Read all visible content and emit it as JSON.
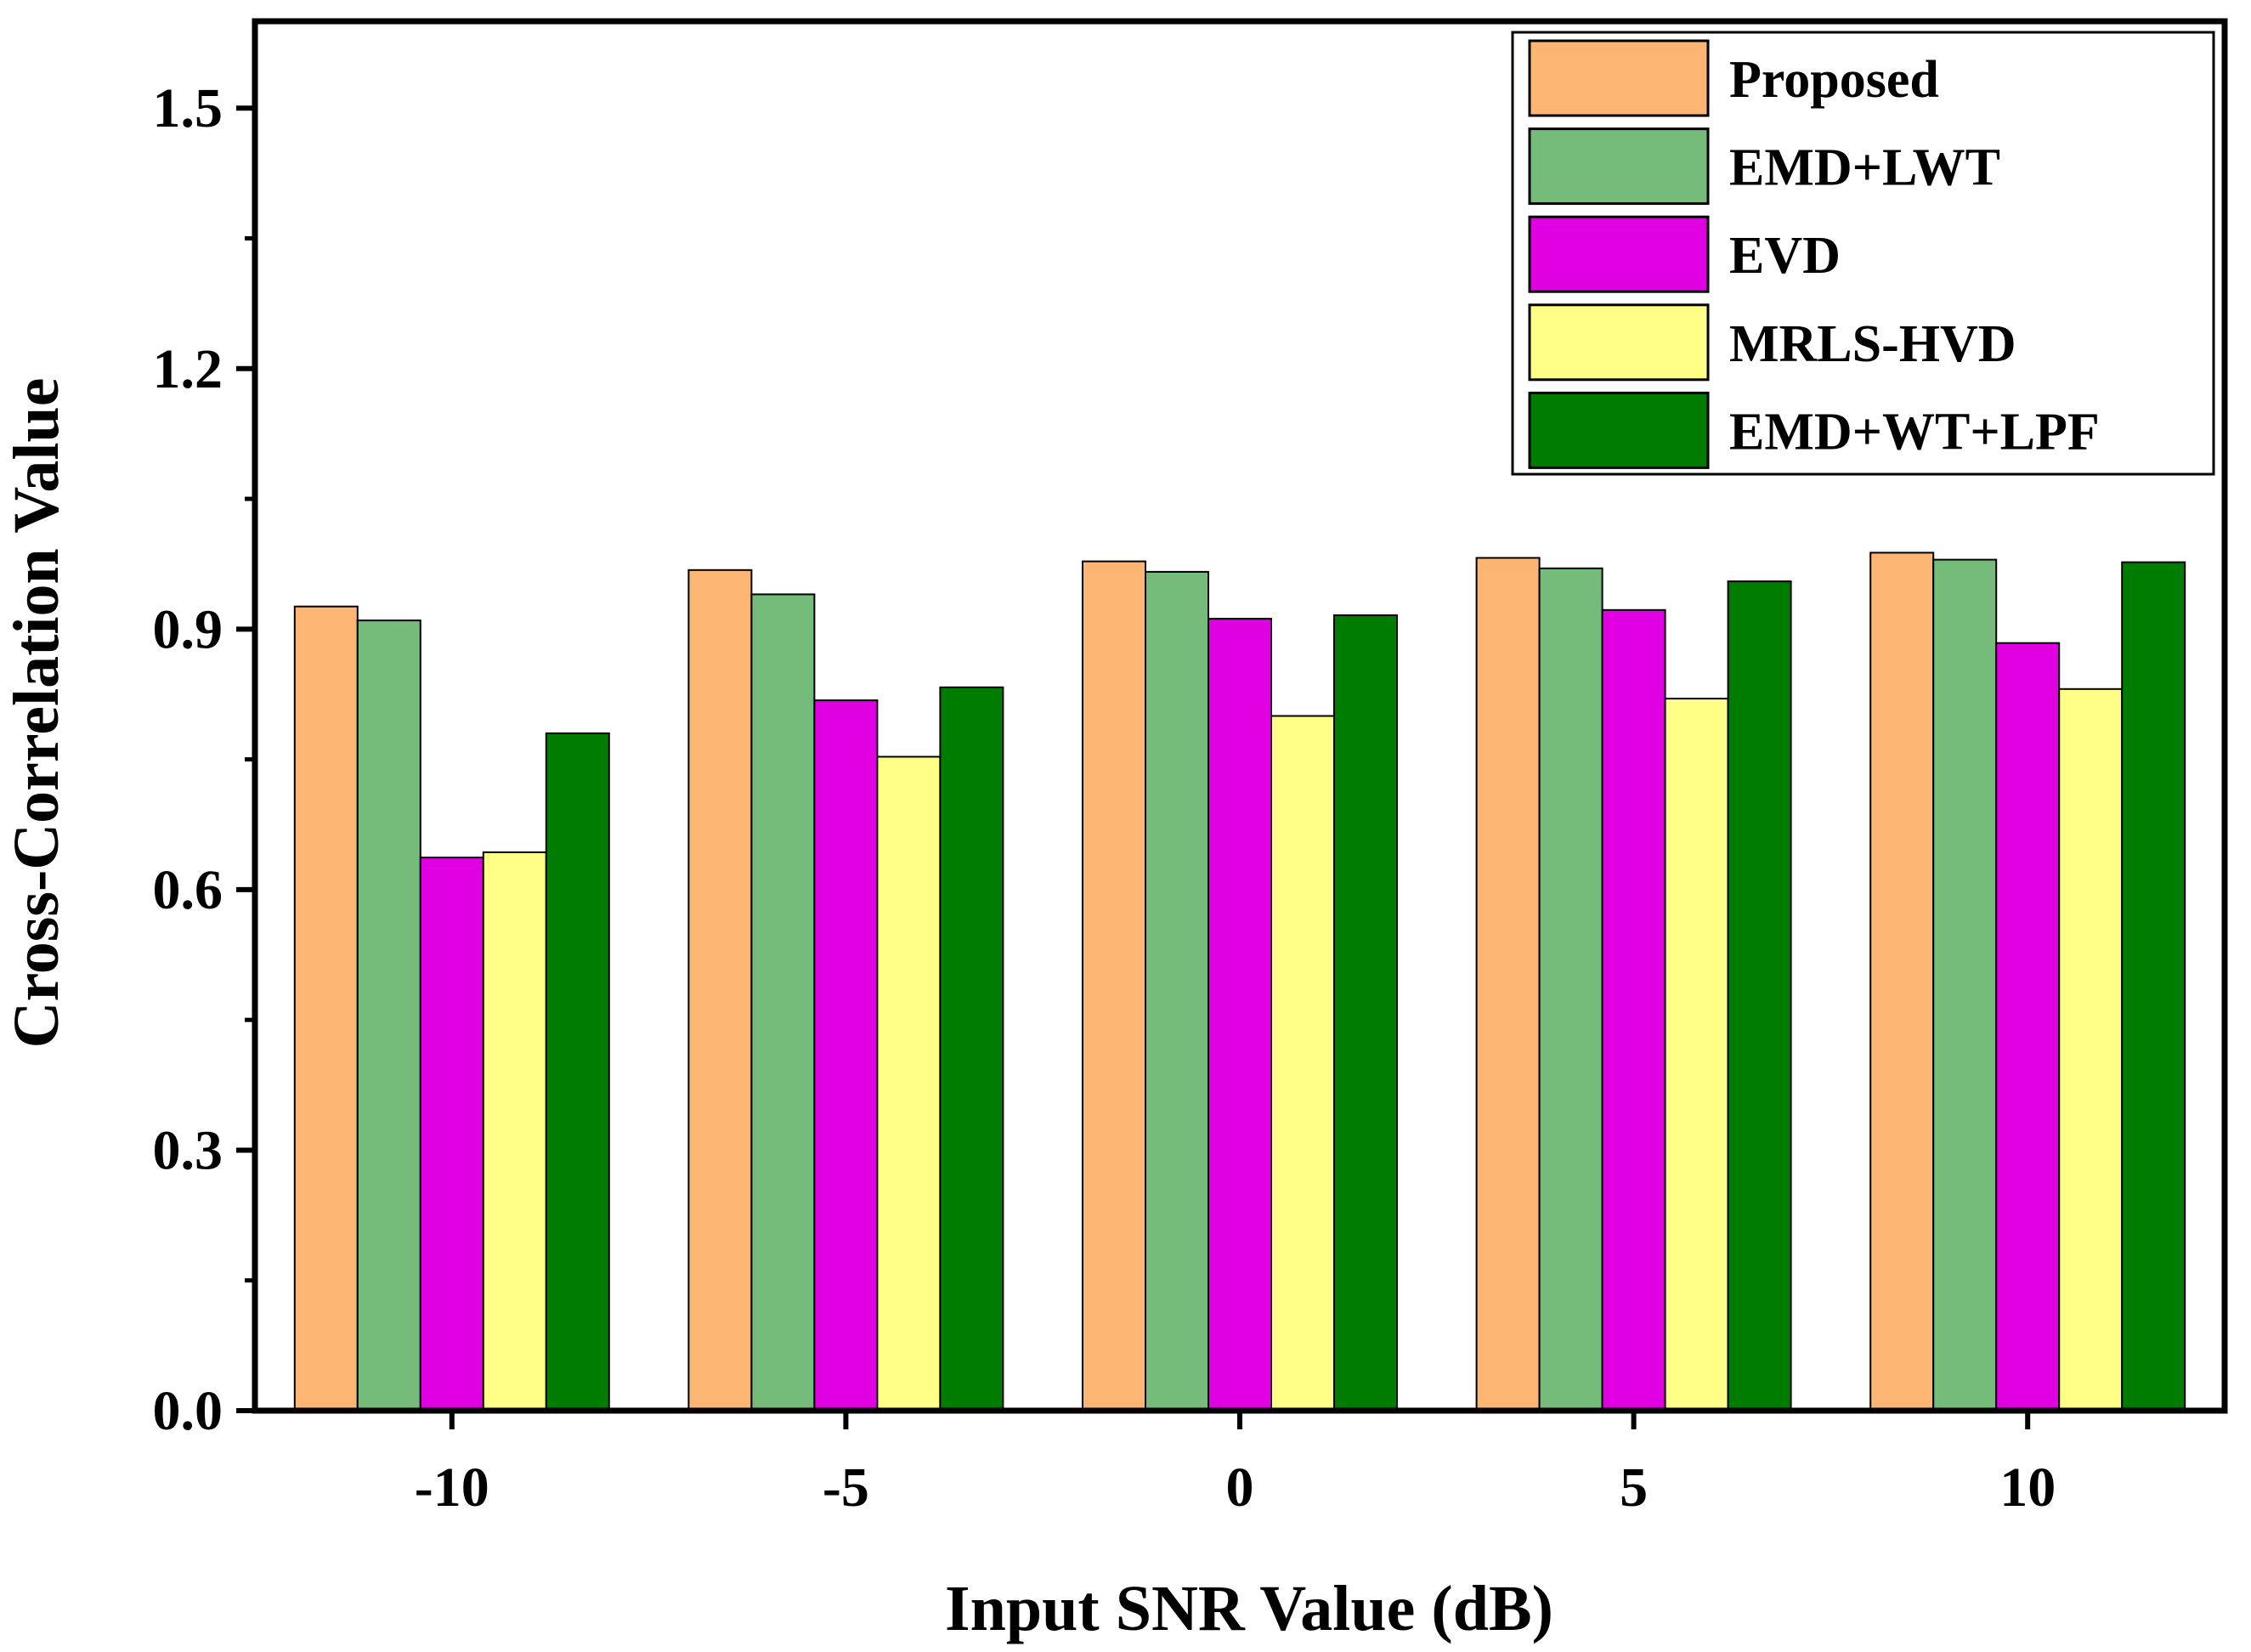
{
  "chart_data": {
    "type": "bar",
    "categories": [
      "-10",
      "-5",
      "0",
      "5",
      "10"
    ],
    "series": [
      {
        "name": "Proposed",
        "color": "#FDB574",
        "values": [
          0.926,
          0.968,
          0.978,
          0.982,
          0.988
        ]
      },
      {
        "name": "EMD+LWT",
        "color": "#75BB7A",
        "values": [
          0.91,
          0.94,
          0.966,
          0.97,
          0.98
        ]
      },
      {
        "name": "EVD",
        "color": "#E100E1",
        "values": [
          0.637,
          0.818,
          0.912,
          0.922,
          0.884
        ]
      },
      {
        "name": "MRLS-HVD",
        "color": "#FFFF88",
        "values": [
          0.643,
          0.753,
          0.8,
          0.82,
          0.831
        ]
      },
      {
        "name": "EMD+WT+LPF",
        "color": "#007D00",
        "values": [
          0.78,
          0.833,
          0.916,
          0.955,
          0.977
        ]
      }
    ],
    "yticks": [
      "0.0",
      "0.3",
      "0.6",
      "0.9",
      "1.2",
      "1.5"
    ],
    "ylim": [
      0,
      1.6
    ],
    "xlabel": "Input SNR Value (dB)",
    "ylabel": "Cross-Correlation Value",
    "legend_position": "top-right",
    "grid": false
  }
}
